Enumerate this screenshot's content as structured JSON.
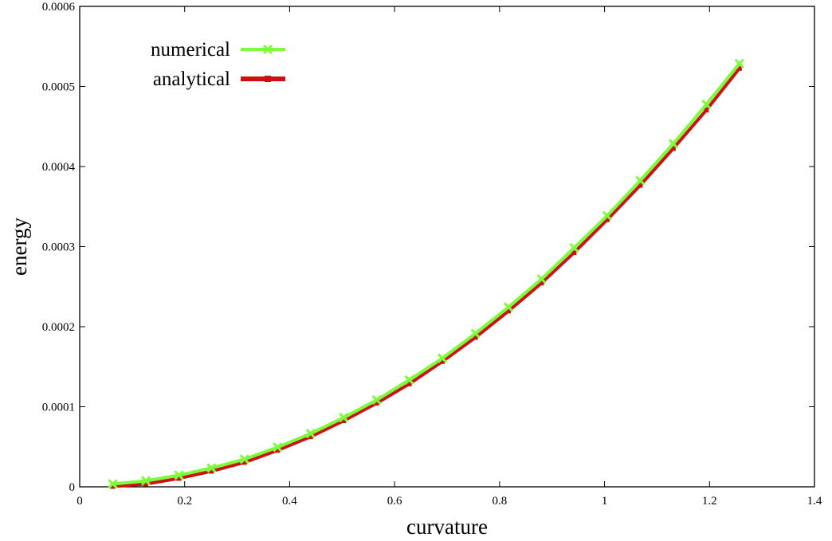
{
  "chart_data": {
    "type": "line",
    "xlabel": "curvature",
    "ylabel": "energy",
    "xlim": [
      0,
      1.4
    ],
    "ylim": [
      0,
      0.0006
    ],
    "x_ticks": [
      "0",
      "0.2",
      "0.4",
      "0.6",
      "0.8",
      "1",
      "1.2",
      "1.4"
    ],
    "y_ticks": [
      "0",
      "0.0001",
      "0.0002",
      "0.0003",
      "0.0004",
      "0.0005",
      "0.0006"
    ],
    "grid": false,
    "legend_position": "top-left",
    "x": [
      0.063,
      0.126,
      0.189,
      0.251,
      0.314,
      0.377,
      0.44,
      0.503,
      0.566,
      0.628,
      0.691,
      0.754,
      0.817,
      0.88,
      0.942,
      1.005,
      1.068,
      1.131,
      1.194,
      1.257
    ],
    "series": [
      {
        "name": "numerical",
        "color": "#7CFC3A",
        "marker": "x",
        "values": [
          2e-06,
          6e-06,
          1.3e-05,
          2.2e-05,
          3.3e-05,
          4.8e-05,
          6.5e-05,
          8.5e-05,
          0.000107,
          0.000132,
          0.000159,
          0.00019,
          0.000223,
          0.000258,
          0.000297,
          0.000337,
          0.000381,
          0.000427,
          0.000476,
          0.000527
        ]
      },
      {
        "name": "analytical",
        "color": "#CC1111",
        "marker": "square",
        "values": [
          2e-06,
          5e-06,
          1.2e-05,
          2.1e-05,
          3.2e-05,
          4.7e-05,
          6.4e-05,
          8.4e-05,
          0.000106,
          0.00013,
          0.000158,
          0.000188,
          0.000221,
          0.000256,
          0.000294,
          0.000335,
          0.000378,
          0.000424,
          0.000472,
          0.000524
        ]
      }
    ]
  }
}
